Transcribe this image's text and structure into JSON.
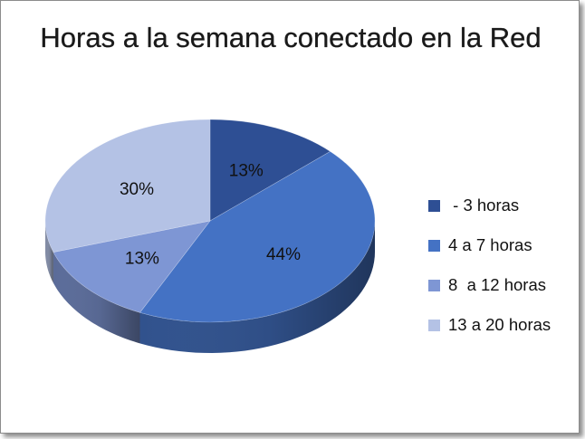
{
  "chart_data": {
    "type": "pie",
    "title": "Horas a la semana conectado en la Red",
    "categories": [
      " - 3 horas",
      "4 a 7 horas",
      "8  a 12 horas",
      "13 a 20 horas"
    ],
    "values": [
      13,
      44,
      13,
      30
    ],
    "data_labels": [
      "13%",
      "44%",
      "13%",
      "30%"
    ],
    "colors": [
      "#2e4f94",
      "#4472c4",
      "#7e96d4",
      "#b4c2e5"
    ],
    "legend_position": "right",
    "style": "3d"
  }
}
